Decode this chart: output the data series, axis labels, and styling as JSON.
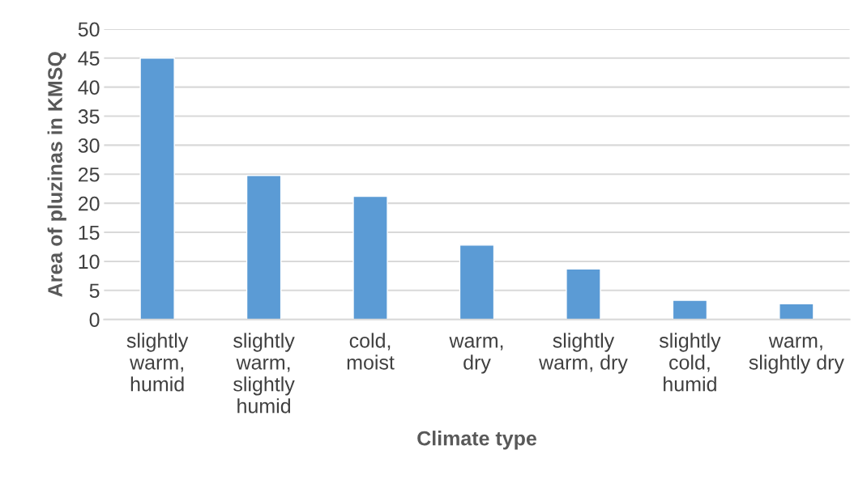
{
  "chart_data": {
    "type": "bar",
    "xlabel": "Climate type",
    "ylabel": "Area of pluzinas in KMSQ",
    "categories": [
      "slightly\nwarm,\nhumid",
      "slightly\nwarm,\nslightly\nhumid",
      "cold,\nmoist",
      "warm,\ndry",
      "slightly\nwarm, dry",
      "slightly\ncold,\nhumid",
      "warm,\nslightly dry"
    ],
    "values": [
      45,
      24.8,
      21.2,
      12.8,
      8.7,
      3.3,
      2.7
    ],
    "color": "#5b9bd5",
    "ylim": [
      0,
      50
    ],
    "yticks": [
      0,
      5,
      10,
      15,
      20,
      25,
      30,
      35,
      40,
      45,
      50
    ],
    "grid": "y",
    "legend": false
  }
}
